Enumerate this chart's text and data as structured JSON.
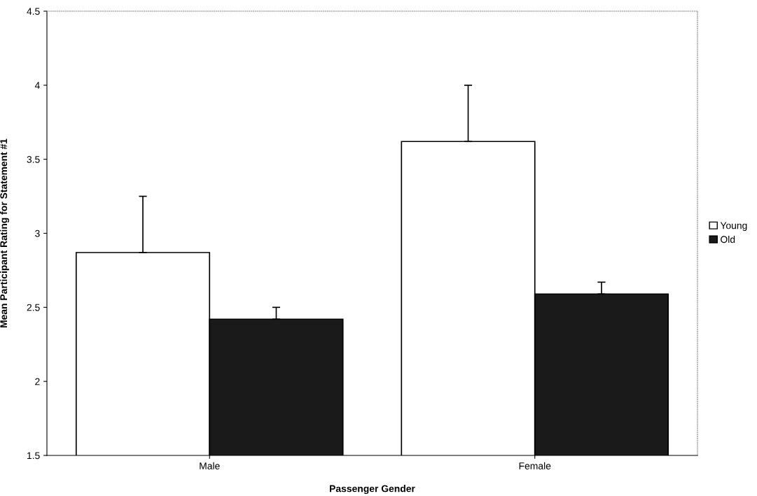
{
  "chart_data": {
    "type": "bar",
    "xlabel": "Passenger Gender",
    "ylabel": "Mean Participant Rating for Statement #1",
    "categories": [
      "Male",
      "Female"
    ],
    "series": [
      {
        "name": "Young",
        "color": "#ffffff",
        "values": [
          2.87,
          3.62
        ],
        "errors": [
          [
            2.87,
            3.25
          ],
          [
            3.62,
            4.0
          ]
        ]
      },
      {
        "name": "Old",
        "color": "#1a1a1a",
        "values": [
          2.42,
          2.59
        ],
        "errors": [
          [
            2.42,
            2.5
          ],
          [
            2.59,
            2.67
          ]
        ]
      }
    ],
    "ylim": [
      1.5,
      4.5
    ],
    "yticks": [
      1.5,
      2,
      2.5,
      3,
      3.5,
      4,
      4.5
    ],
    "grid": false,
    "legend": "right"
  }
}
